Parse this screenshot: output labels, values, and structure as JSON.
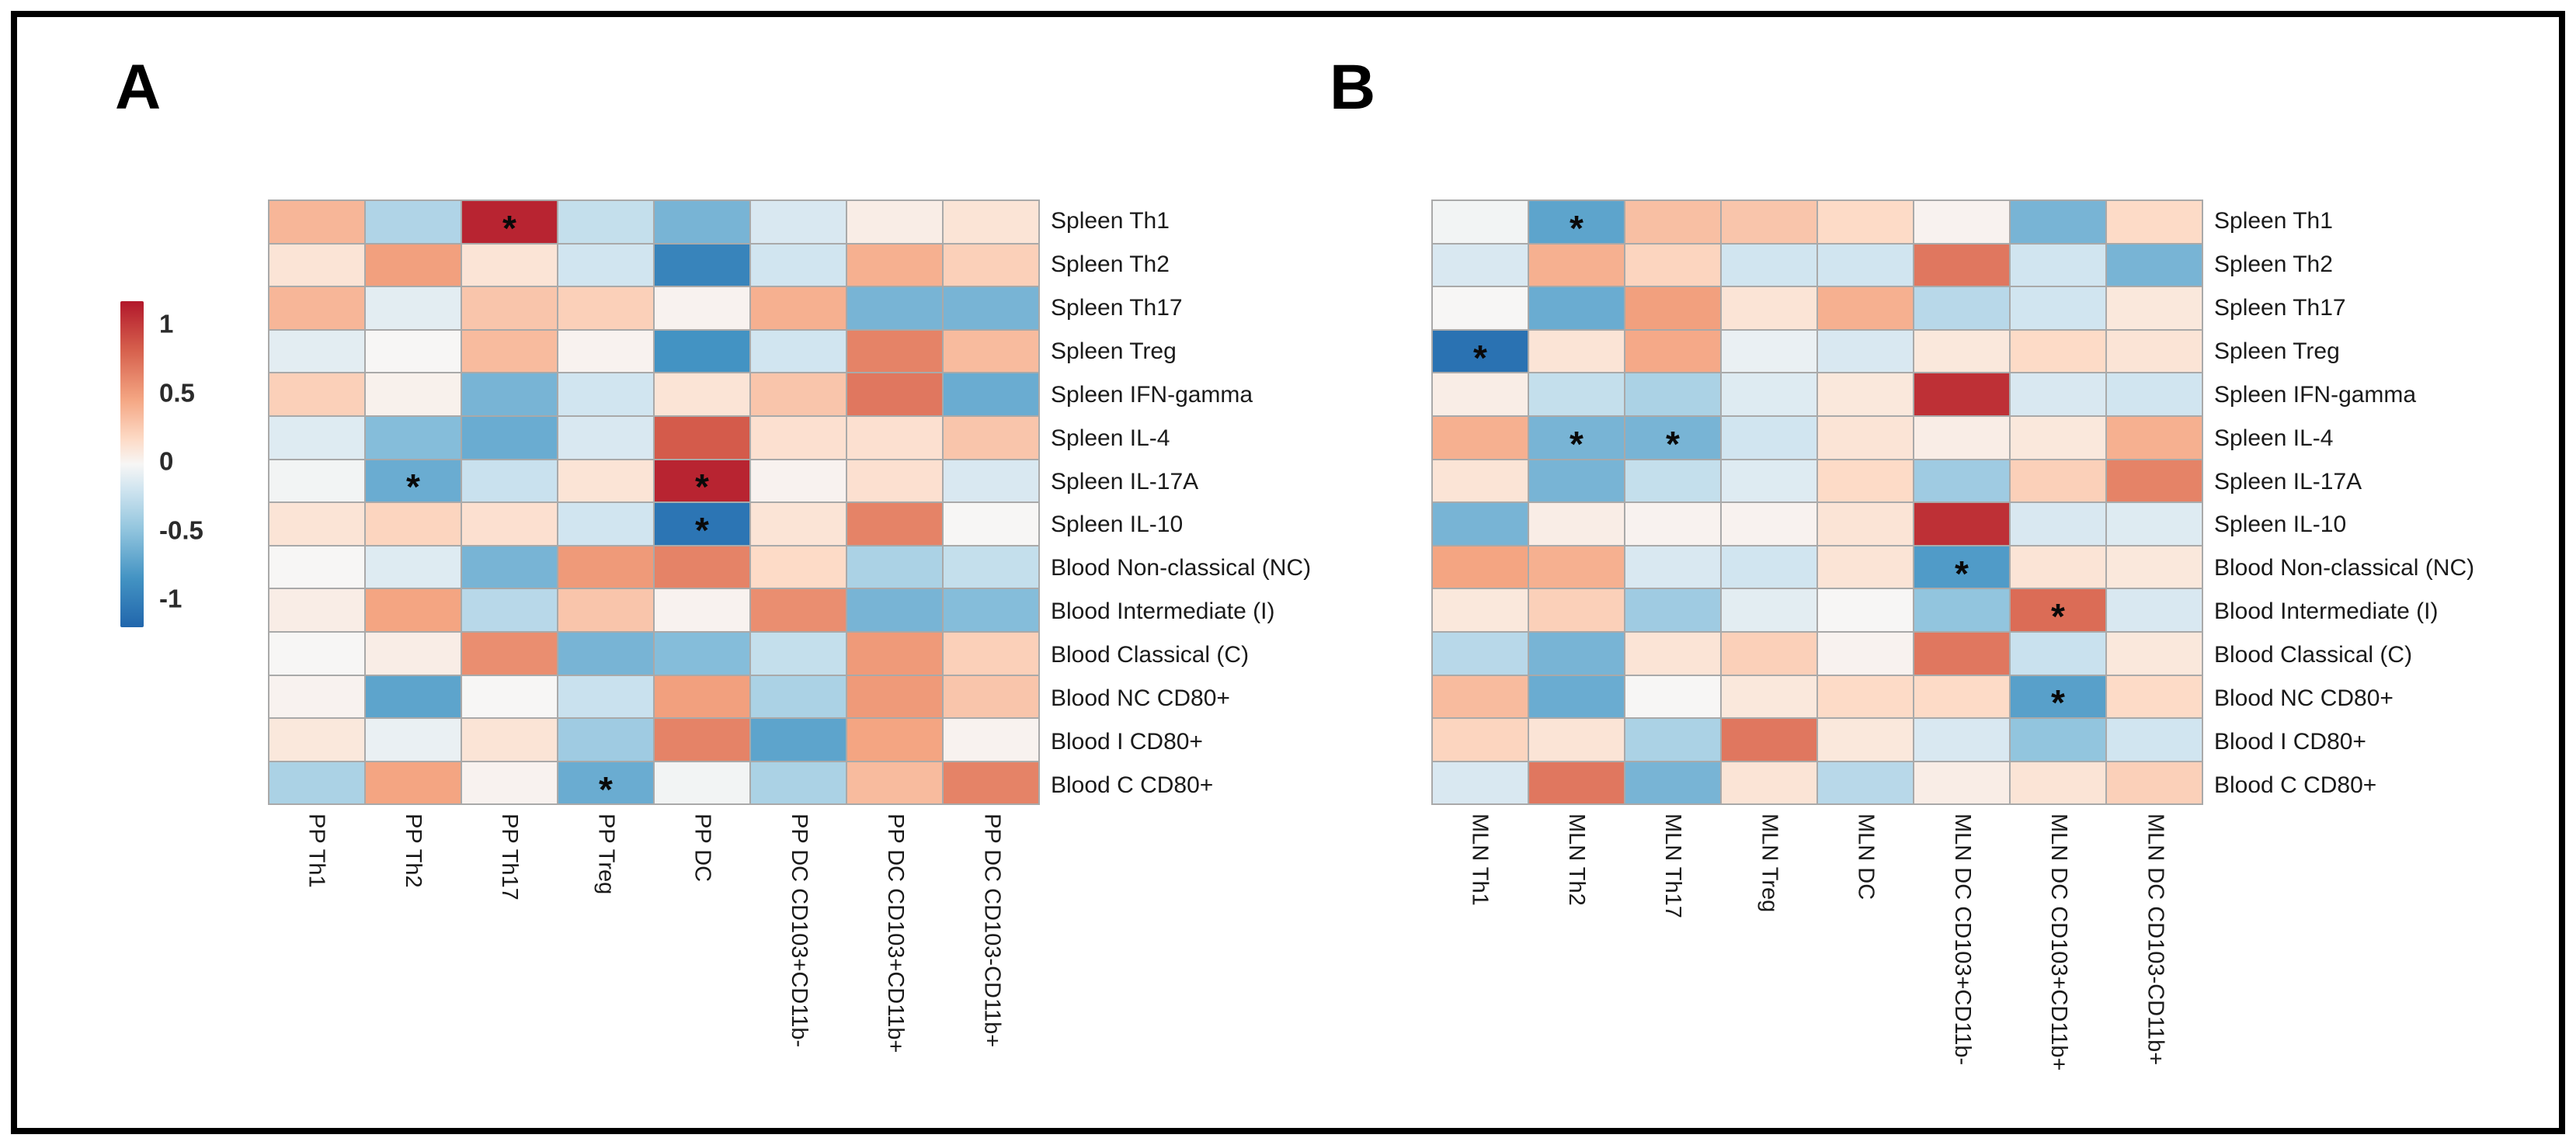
{
  "figure": {
    "panel_a_label": "A",
    "panel_b_label": "B",
    "significance_symbol": "*",
    "colorbar": {
      "ticks": [
        "1",
        "0.5",
        "0",
        "-0.5",
        "-1"
      ],
      "max_color": "#b2182b",
      "mid_color": "#f7f6f5",
      "min_color": "#2166ac"
    }
  },
  "chart_data": [
    {
      "type": "heatmap",
      "panel": "A",
      "columns": [
        "PP Th1",
        "PP Th2",
        "PP Th17",
        "PP Treg",
        "PP DC",
        "PP DC CD103+CD11b-",
        "PP DC CD103+CD11b+",
        "PP DC CD103-CD11b+"
      ],
      "rows": [
        "Spleen Th1",
        "Spleen Th2",
        "Spleen Th17",
        "Spleen Treg",
        "Spleen IFN-gamma",
        "Spleen IL-4",
        "Spleen IL-17A",
        "Spleen IL-10",
        "Blood Non-classical (NC)",
        "Blood Intermediate (I)",
        "Blood Classical (C)",
        "Blood NC CD80+",
        "Blood I CD80+",
        "Blood C CD80+"
      ],
      "values": [
        [
          0.32,
          -0.28,
          0.95,
          -0.2,
          -0.5,
          -0.12,
          0.05,
          0.1
        ],
        [
          0.1,
          0.42,
          0.1,
          -0.15,
          -0.8,
          -0.15,
          0.35,
          0.2
        ],
        [
          0.32,
          -0.08,
          0.25,
          0.2,
          0.02,
          0.35,
          -0.5,
          -0.5
        ],
        [
          -0.08,
          0.0,
          0.3,
          0.02,
          -0.7,
          -0.15,
          0.55,
          0.3
        ],
        [
          0.2,
          0.03,
          -0.5,
          -0.15,
          0.1,
          0.25,
          0.6,
          -0.55
        ],
        [
          -0.1,
          -0.45,
          -0.55,
          -0.12,
          0.72,
          0.12,
          0.12,
          0.25
        ],
        [
          -0.02,
          -0.55,
          -0.18,
          0.1,
          0.95,
          0.02,
          0.12,
          -0.12
        ],
        [
          0.1,
          0.18,
          0.12,
          -0.15,
          -0.9,
          0.1,
          0.55,
          0.0
        ],
        [
          0.0,
          -0.1,
          -0.5,
          0.45,
          0.55,
          0.15,
          -0.3,
          -0.2
        ],
        [
          0.05,
          0.4,
          -0.25,
          0.25,
          0.02,
          0.5,
          -0.5,
          -0.45
        ],
        [
          0.0,
          0.05,
          0.5,
          -0.5,
          -0.45,
          -0.2,
          0.45,
          0.2
        ],
        [
          0.02,
          -0.6,
          0.0,
          -0.18,
          0.42,
          -0.3,
          0.45,
          0.25
        ],
        [
          0.08,
          -0.05,
          0.1,
          -0.35,
          0.55,
          -0.6,
          0.4,
          0.02
        ],
        [
          -0.3,
          0.4,
          0.02,
          -0.55,
          -0.02,
          -0.3,
          0.3,
          0.55
        ]
      ],
      "significant_cells": [
        [
          0,
          2
        ],
        [
          6,
          1
        ],
        [
          6,
          4
        ],
        [
          7,
          4
        ],
        [
          13,
          3
        ]
      ],
      "value_range": [
        -1,
        1
      ],
      "colormap": "red positive, white zero, blue negative"
    },
    {
      "type": "heatmap",
      "panel": "B",
      "columns": [
        "MLN Th1",
        "MLN Th2",
        "MLN Th17",
        "MLN Treg",
        "MLN DC",
        "MLN DC CD103+CD11b-",
        "MLN DC CD103+CD11b+",
        "MLN DC CD103-CD11b+"
      ],
      "rows": [
        "Spleen Th1",
        "Spleen Th2",
        "Spleen Th17",
        "Spleen Treg",
        "Spleen IFN-gamma",
        "Spleen IL-4",
        "Spleen IL-17A",
        "Spleen IL-10",
        "Blood Non-classical (NC)",
        "Blood Intermediate (I)",
        "Blood Classical (C)",
        "Blood NC CD80+",
        "Blood I CD80+",
        "Blood C CD80+"
      ],
      "values": [
        [
          -0.02,
          -0.6,
          0.28,
          0.25,
          0.15,
          0.02,
          -0.5,
          0.15
        ],
        [
          -0.12,
          0.35,
          0.18,
          -0.15,
          -0.15,
          0.6,
          -0.15,
          -0.5
        ],
        [
          0.0,
          -0.55,
          0.42,
          0.1,
          0.35,
          -0.25,
          -0.15,
          0.08
        ],
        [
          -0.92,
          0.1,
          0.38,
          -0.05,
          -0.12,
          0.08,
          0.15,
          0.1
        ],
        [
          0.05,
          -0.2,
          -0.3,
          -0.1,
          0.08,
          0.9,
          -0.12,
          -0.15
        ],
        [
          0.35,
          -0.5,
          -0.5,
          -0.15,
          0.1,
          0.05,
          0.08,
          0.35
        ],
        [
          0.1,
          -0.5,
          -0.2,
          -0.1,
          0.15,
          -0.35,
          0.2,
          0.55
        ],
        [
          -0.5,
          0.05,
          0.02,
          0.02,
          0.1,
          0.9,
          -0.12,
          -0.1
        ],
        [
          0.4,
          0.35,
          -0.12,
          -0.15,
          0.1,
          -0.65,
          0.1,
          0.08
        ],
        [
          0.08,
          0.2,
          -0.35,
          -0.08,
          0.0,
          -0.4,
          0.65,
          -0.12
        ],
        [
          -0.25,
          -0.5,
          0.1,
          0.2,
          0.02,
          0.6,
          -0.18,
          0.08
        ],
        [
          0.3,
          -0.55,
          0.0,
          0.08,
          0.15,
          0.15,
          -0.62,
          0.15
        ],
        [
          0.18,
          0.1,
          -0.3,
          0.6,
          0.08,
          -0.12,
          -0.4,
          -0.15
        ],
        [
          -0.12,
          0.6,
          -0.5,
          0.1,
          -0.25,
          0.05,
          0.1,
          0.2
        ]
      ],
      "significant_cells": [
        [
          0,
          1
        ],
        [
          3,
          0
        ],
        [
          5,
          1
        ],
        [
          5,
          2
        ],
        [
          8,
          5
        ],
        [
          9,
          6
        ],
        [
          11,
          6
        ]
      ],
      "value_range": [
        -1,
        1
      ],
      "colormap": "red positive, white zero, blue negative"
    }
  ]
}
